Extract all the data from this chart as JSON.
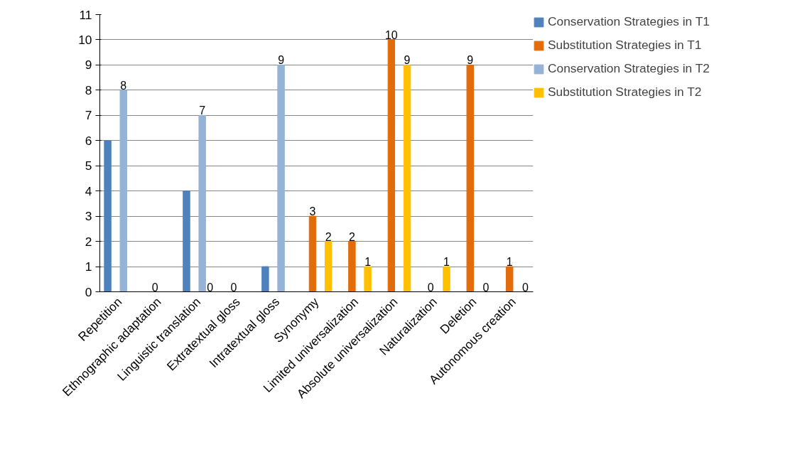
{
  "chart_data": {
    "type": "bar",
    "categories": [
      "Repetition",
      "Ethnographic adaptation",
      "Linguistic translation",
      "Extratextual gloss",
      "Intratextual gloss",
      "Synonymy",
      "Limited universalization",
      "Absolute universalization",
      "Naturalization",
      "Deletion",
      "Autonomous creation"
    ],
    "series": [
      {
        "name": "Conservation Strategies in T1",
        "color": "#4f81bd",
        "values": [
          6,
          0,
          4,
          0,
          1,
          0,
          0,
          0,
          0,
          0,
          0
        ],
        "value_labels": [
          null,
          null,
          null,
          null,
          null,
          null,
          null,
          null,
          null,
          null,
          null
        ]
      },
      {
        "name": "Substitution Strategies in T1",
        "color": "#e36c0a",
        "values": [
          0,
          0,
          0,
          0,
          0,
          3,
          2,
          10,
          0,
          9,
          1
        ],
        "value_labels": [
          null,
          "0",
          null,
          "0",
          null,
          "3",
          "2",
          "10",
          "0",
          "9",
          "1"
        ]
      },
      {
        "name": "Conservation Strategies in T2",
        "color": "#95b3d7",
        "values": [
          8,
          0,
          7,
          0,
          9,
          0,
          0,
          0,
          0,
          0,
          0
        ],
        "value_labels": [
          "8",
          null,
          "7",
          null,
          "9",
          null,
          null,
          null,
          null,
          null,
          null
        ]
      },
      {
        "name": "Substitution Strategies in T2",
        "color": "#ffc000",
        "values": [
          0,
          0,
          0,
          0,
          0,
          2,
          1,
          9,
          1,
          0,
          0
        ],
        "value_labels": [
          null,
          null,
          "0",
          null,
          null,
          "2",
          "1",
          "9",
          "1",
          "0",
          "0"
        ]
      }
    ],
    "ylim": [
      0,
      11
    ],
    "yticks": [
      0,
      1,
      2,
      3,
      4,
      5,
      6,
      7,
      8,
      9,
      10,
      11
    ],
    "grid": "y",
    "legend": "right"
  }
}
